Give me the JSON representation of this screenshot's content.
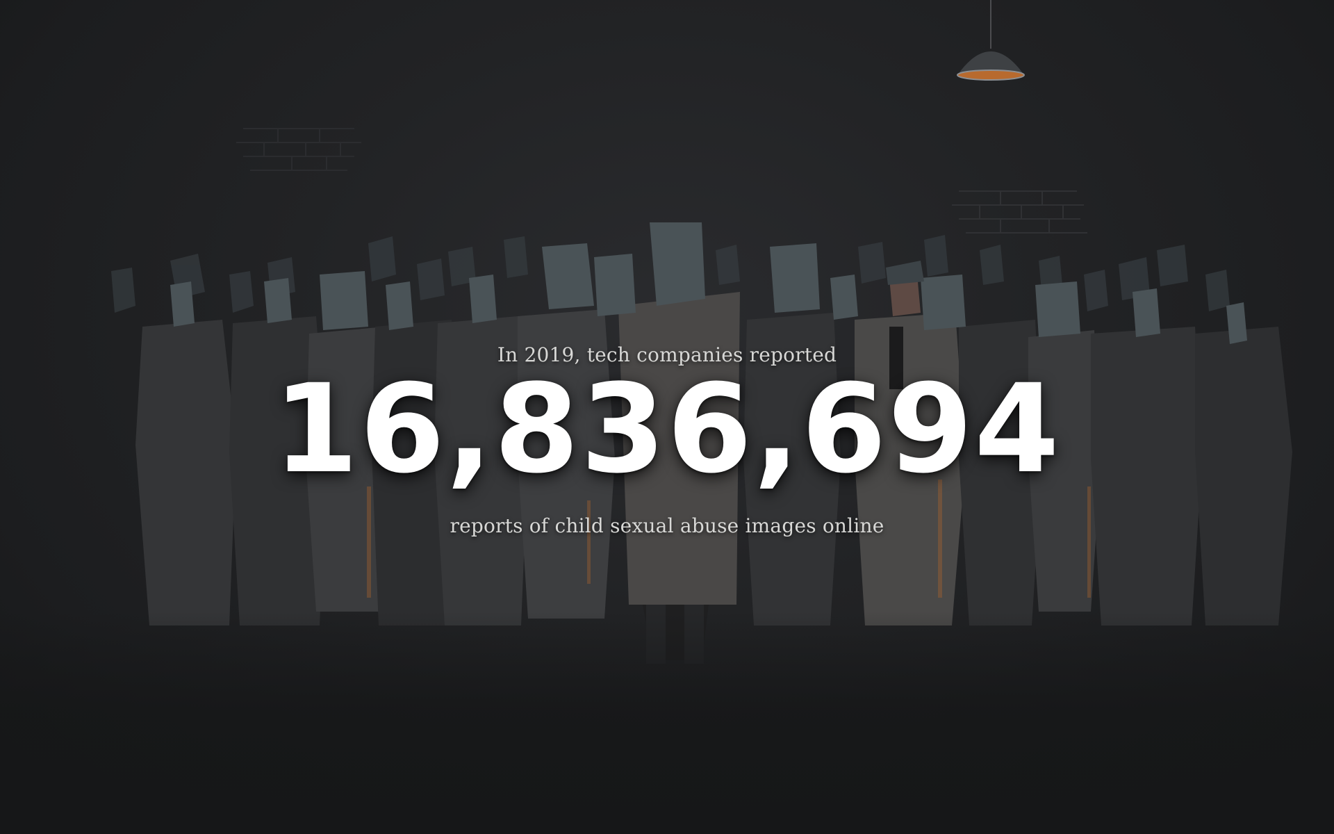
{
  "headline": {
    "intro": "In 2019, tech companies reported",
    "number": "16,836,694",
    "outro": "reports of child sexual abuse images online"
  },
  "illustration": {
    "subject": "crowd of faceless figures in a dark room",
    "elements": [
      "pendant-lamp",
      "brick-wall-patches",
      "crowd-figures"
    ]
  },
  "colors": {
    "background": "#1d1e20",
    "text_primary": "#ffffff",
    "text_secondary": "#d8d8d6",
    "figure_body": "#3a3b3d",
    "figure_head": "#4a5357",
    "accent_glow": "#b8662a"
  }
}
